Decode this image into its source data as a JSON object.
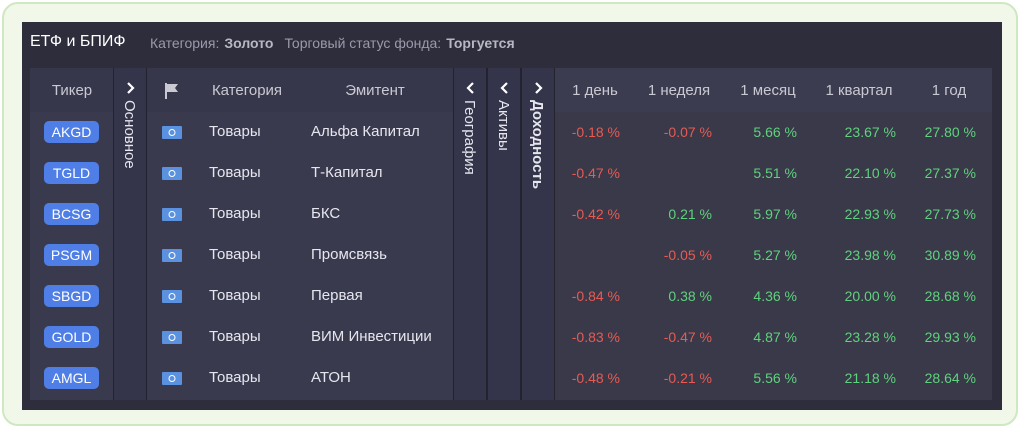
{
  "header": {
    "title": "ЕТФ и БПИФ",
    "filters": [
      {
        "label": "Категория:",
        "value": "Золото"
      },
      {
        "label": "Торговый статус фонда:",
        "value": "Торгуется"
      }
    ]
  },
  "table": {
    "columns": [
      "Тикер",
      "Категория",
      "Эмитент",
      "1 день",
      "1 неделя",
      "1 месяц",
      "1 квартал",
      "1 год"
    ],
    "tabs": [
      "Основное",
      "География",
      "Активы",
      "Доходность"
    ],
    "rows": [
      [
        "AKGD",
        "Товары",
        "Альфа Капитал",
        "-0.18 %",
        "-0.07 %",
        "5.66 %",
        "23.67 %",
        "27.80 %"
      ],
      [
        "TGLD",
        "Товары",
        "Т-Капитал",
        "-0.47 %",
        null,
        "5.51 %",
        "22.10 %",
        "27.37 %"
      ],
      [
        "BCSG",
        "Товары",
        "БКС",
        "-0.42 %",
        "0.21 %",
        "5.97 %",
        "22.93 %",
        "27.73 %"
      ],
      [
        "PSGM",
        "Товары",
        "Промсвязь",
        null,
        "-0.05 %",
        "5.27 %",
        "23.98 %",
        "30.89 %"
      ],
      [
        "SBGD",
        "Товары",
        "Первая",
        "-0.84 %",
        "0.38 %",
        "4.36 %",
        "20.00 %",
        "28.68 %"
      ],
      [
        "GOLD",
        "Товары",
        "ВИМ Инвестиции",
        "-0.83 %",
        "-0.47 %",
        "4.87 %",
        "23.28 %",
        "29.93 %"
      ],
      [
        "AMGL",
        "Товары",
        "АТОН",
        "-0.48 %",
        "-0.21 %",
        "5.56 %",
        "21.18 %",
        "28.64 %"
      ]
    ]
  }
}
